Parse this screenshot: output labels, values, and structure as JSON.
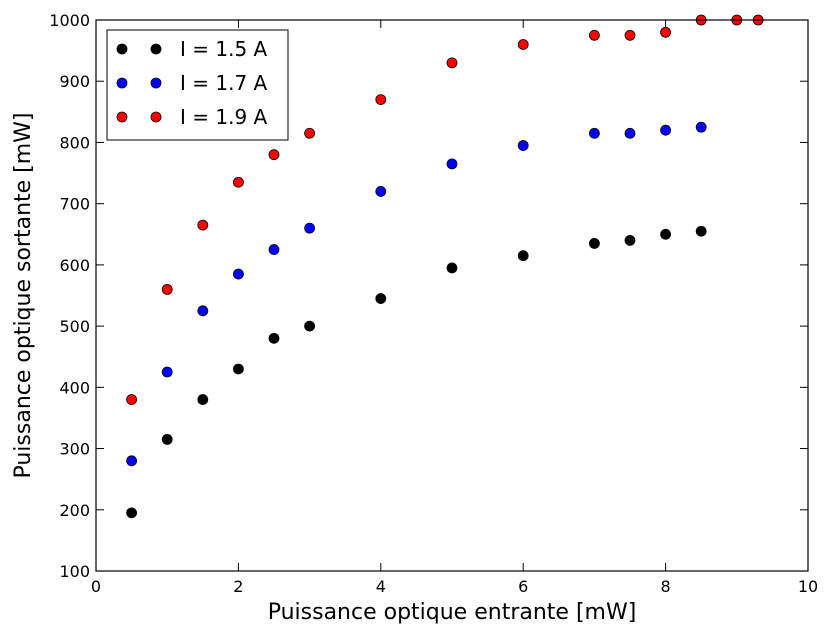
{
  "chart_data": {
    "type": "scatter",
    "title": "",
    "xlabel": "Puissance optique entrante [mW]",
    "ylabel": "Puissance optique sortante [mW]",
    "xlim": [
      0,
      10
    ],
    "ylim": [
      100,
      1000
    ],
    "x_ticks": [
      "0",
      "2",
      "4",
      "6",
      "8",
      "10"
    ],
    "y_ticks": [
      "100",
      "200",
      "300",
      "400",
      "500",
      "600",
      "700",
      "800",
      "900",
      "1000"
    ],
    "grid": false,
    "legend_position": "top-left",
    "series": [
      {
        "name": "I = 1.5 A",
        "color": "#000000",
        "x": [
          0.5,
          1.0,
          1.5,
          2.0,
          2.5,
          3.0,
          4.0,
          5.0,
          6.0,
          7.0,
          7.5,
          8.0,
          8.5
        ],
        "y": [
          195,
          315,
          380,
          430,
          480,
          500,
          545,
          595,
          615,
          635,
          640,
          650,
          655
        ]
      },
      {
        "name": "I = 1.7 A",
        "color": "#0000ff",
        "x": [
          0.5,
          1.0,
          1.5,
          2.0,
          2.5,
          3.0,
          4.0,
          5.0,
          6.0,
          7.0,
          7.5,
          8.0,
          8.5
        ],
        "y": [
          280,
          425,
          525,
          585,
          625,
          660,
          720,
          765,
          795,
          815,
          815,
          820,
          825
        ]
      },
      {
        "name": "I = 1.9 A",
        "color": "#ff0000",
        "x": [
          0.5,
          1.0,
          1.5,
          2.0,
          2.5,
          3.0,
          4.0,
          5.0,
          6.0,
          7.0,
          7.5,
          8.0,
          8.5,
          9.0,
          9.3
        ],
        "y": [
          380,
          560,
          665,
          735,
          780,
          815,
          870,
          930,
          960,
          975,
          975,
          980,
          1000,
          1000,
          1000
        ]
      }
    ]
  }
}
